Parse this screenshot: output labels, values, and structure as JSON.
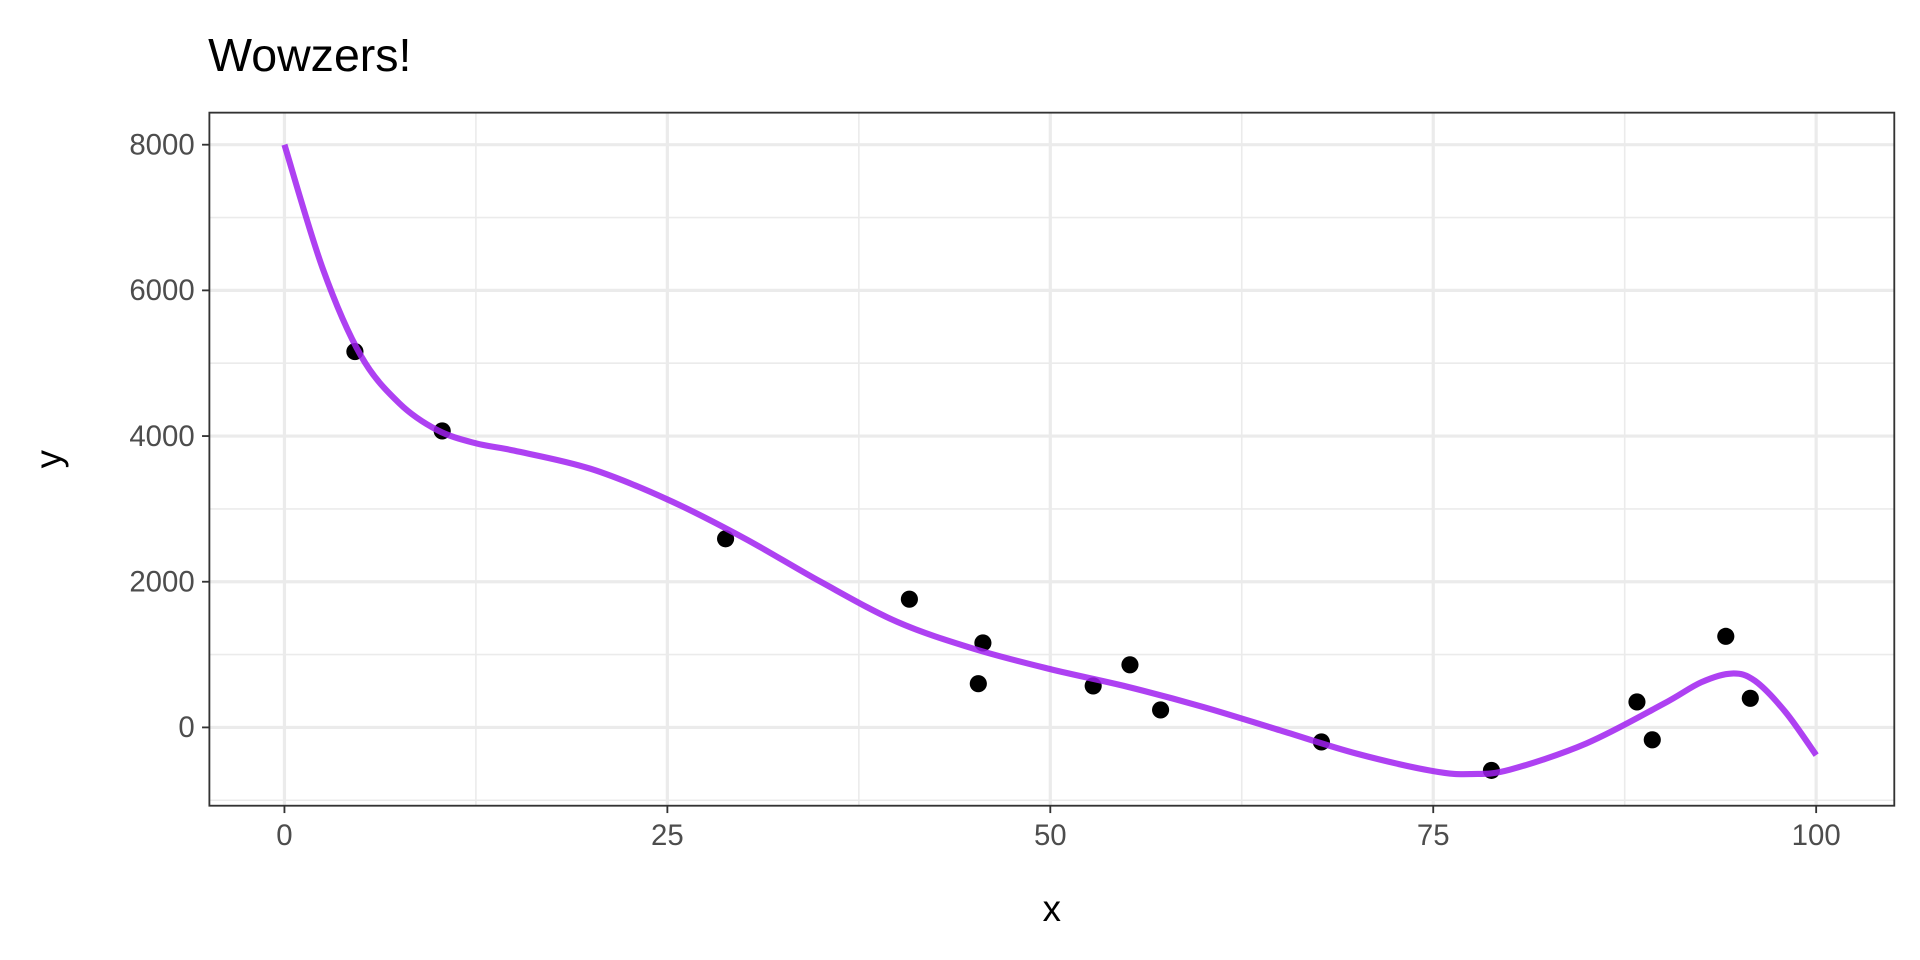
{
  "chart_data": {
    "type": "scatter",
    "title": "Wowzers!",
    "xlabel": "x",
    "ylabel": "y",
    "xlim": [
      -4.9,
      105.1
    ],
    "ylim": [
      -1075,
      8440
    ],
    "x_ticks": [
      0,
      25,
      50,
      75,
      100
    ],
    "y_ticks": [
      0,
      2000,
      4000,
      6000,
      8000
    ],
    "x_tick_labels": [
      "0",
      "25",
      "50",
      "75",
      "100"
    ],
    "y_tick_labels": [
      "0",
      "2000",
      "4000",
      "6000",
      "8000"
    ],
    "grid": true,
    "theme": "bw",
    "points": {
      "color": "#000000",
      "x": [
        4.6,
        10.3,
        28.8,
        40.8,
        45.3,
        45.6,
        52.8,
        55.2,
        57.2,
        67.7,
        78.8,
        88.3,
        89.3,
        94.1,
        95.7
      ],
      "y": [
        5160,
        4070,
        2590,
        1760,
        600,
        1160,
        570,
        860,
        240,
        -200,
        -590,
        350,
        -170,
        1250,
        400
      ]
    },
    "fit_line": {
      "color": "#a020f0",
      "x": [
        0,
        2.5,
        5,
        7.5,
        10,
        12.5,
        15,
        20,
        25,
        30,
        35,
        40,
        45,
        50,
        55,
        60,
        65,
        70,
        75,
        77.5,
        80,
        85,
        90,
        92.5,
        94.5,
        96,
        98,
        100
      ],
      "y": [
        8000,
        6300,
        5100,
        4450,
        4080,
        3900,
        3800,
        3550,
        3130,
        2600,
        2000,
        1450,
        1080,
        800,
        560,
        280,
        -40,
        -360,
        -600,
        -640,
        -580,
        -220,
        320,
        620,
        740,
        640,
        210,
        -380
      ]
    }
  }
}
